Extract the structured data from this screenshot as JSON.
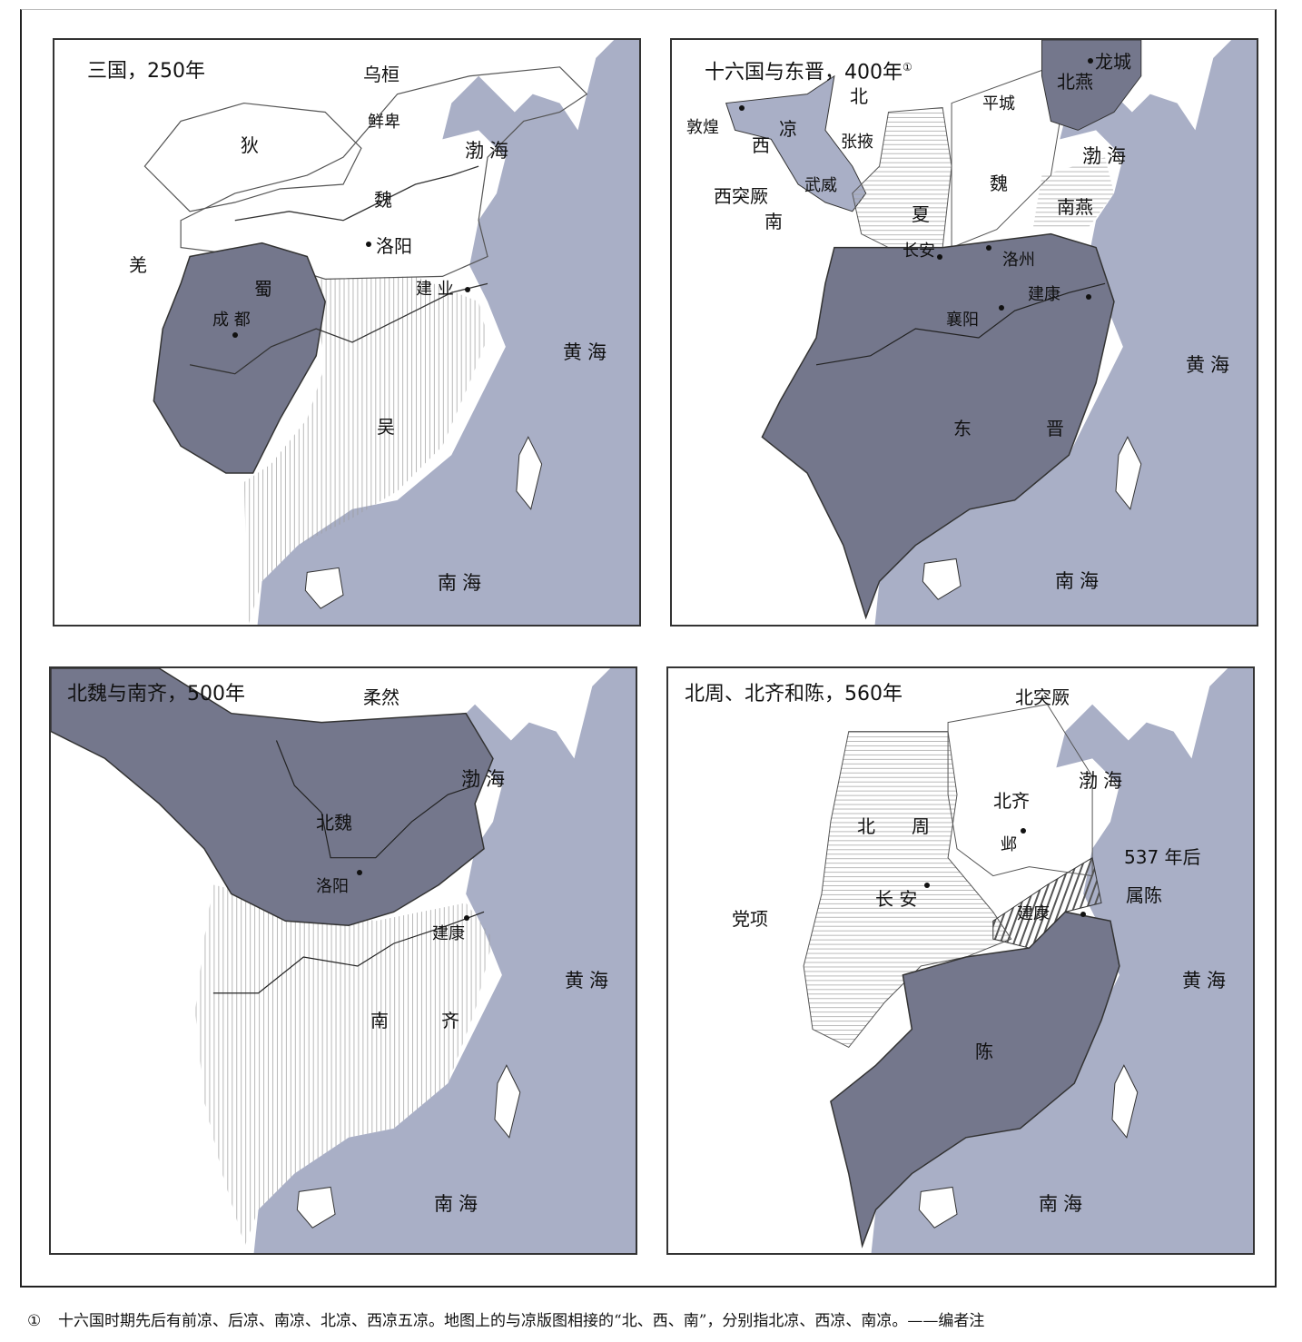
{
  "colors": {
    "sea": "#a9afc6",
    "dark_state": "#74778c",
    "land": "#ffffff",
    "border": "#333333"
  },
  "maps": [
    {
      "title": "三国，250年",
      "labels": {
        "wuhuan": "乌桓",
        "xianbei": "鲜卑",
        "di": "狄",
        "bohai": "渤海",
        "wei": "魏",
        "luoyang": "洛阳",
        "qiang": "羌",
        "shu": "蜀",
        "chengdu": "成 都",
        "jianye": "建 业",
        "huanghai": "黄海",
        "wu": "吴",
        "nanhai": "南海"
      }
    },
    {
      "title": "十六国与东晋，400年",
      "title_note": "①",
      "labels": {
        "longcheng": "龙城",
        "beiyan": "北燕",
        "bei": "北",
        "pingcheng": "平城",
        "dunhuang": "敦煌",
        "liang": "凉",
        "zhangye": "张掖",
        "xi": "西",
        "bohai": "渤海",
        "wei": "魏",
        "xituque": "西突厥",
        "wuwei": "武威",
        "xia": "夏",
        "nanyan": "南燕",
        "nan": "南",
        "changan": "长安",
        "luozhou": "洛州",
        "jiankang": "建康",
        "xiangyang": "襄阳",
        "huanghai": "黄海",
        "dong": "东",
        "jin": "晋",
        "nanhai": "南海"
      }
    },
    {
      "title": "北魏与南齐，500年",
      "labels": {
        "rouran": "柔然",
        "bohai": "渤海",
        "beiwei": "北魏",
        "luoyang": "洛阳",
        "jiankang": "建康",
        "huanghai": "黄海",
        "nan": "南",
        "qi": "齐",
        "nanhai": "南海"
      }
    },
    {
      "title": "北周、北齐和陈，560年",
      "labels": {
        "beituque": "北突厥",
        "bohai": "渤海",
        "beiqi": "北齐",
        "bei": "北",
        "zhou": "周",
        "ye": "邺",
        "after537": "537 年后",
        "shuchen": "属陈",
        "changan": "长 安",
        "dangxiang": "党项",
        "jiankang": "建康",
        "huanghai": "黄海",
        "chen": "陈",
        "nanhai": "南海"
      }
    }
  ],
  "footnote": {
    "mark": "①",
    "text": "十六国时期先后有前凉、后凉、南凉、北凉、西凉五凉。地图上的与凉版图相接的“北、西、南”，分别指北凉、西凉、南凉。——编者注"
  }
}
